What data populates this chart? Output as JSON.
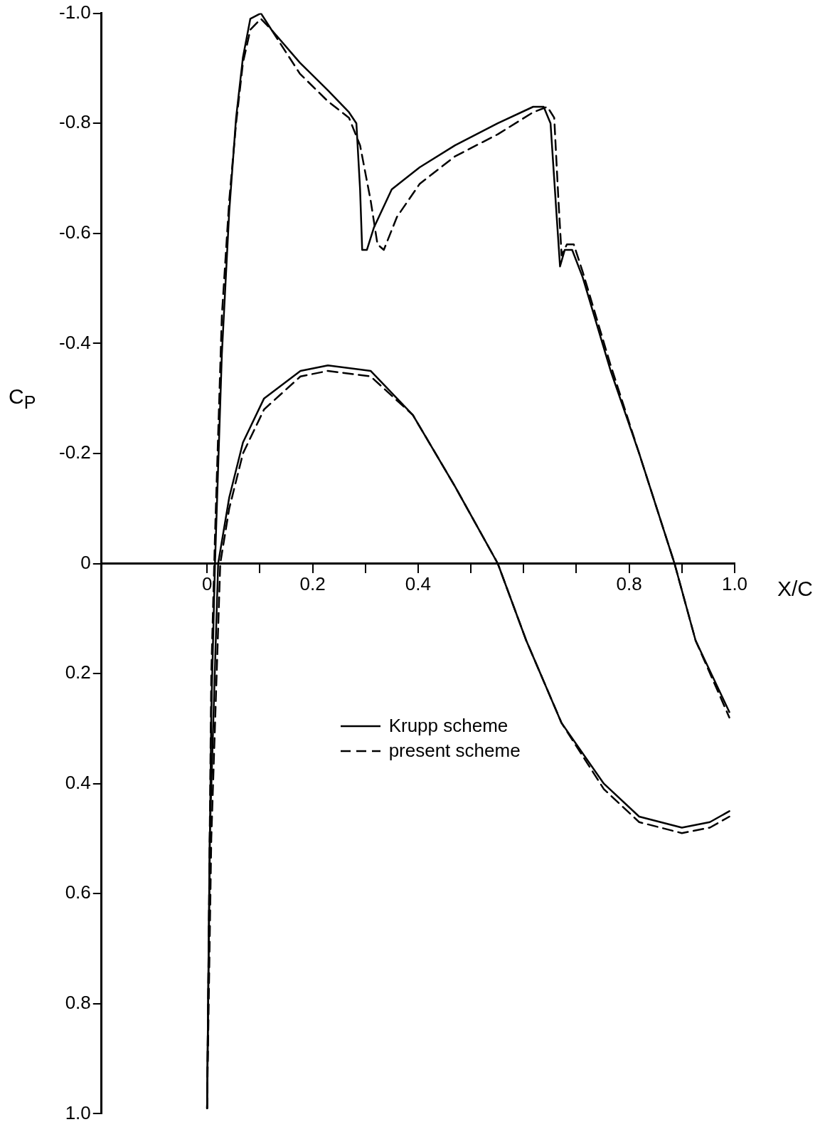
{
  "chart_data": {
    "type": "line",
    "xlabel": "X/C",
    "ylabel": "C$_{P}$",
    "xlim": [
      -0.2,
      1.0
    ],
    "xticks": [
      0,
      {
        "value": 0.1,
        "label": null
      },
      {
        "value": 0.2,
        "label": "0.2"
      },
      {
        "value": 0.3,
        "label": null
      },
      {
        "value": 0.4,
        "label": "0.4"
      },
      {
        "value": 0.5,
        "label": null
      },
      {
        "value": 0.6,
        "label": null
      },
      {
        "value": 0.7,
        "label": null
      },
      {
        "value": 0.8,
        "label": "0.8"
      },
      {
        "value": 0.9,
        "label": null
      },
      {
        "value": 1.0,
        "label": "1.0"
      }
    ],
    "ylim": [
      1.0,
      -1.0
    ],
    "yticks": [
      {
        "value": -1.0,
        "label": "-1.0"
      },
      -0.8,
      -0.6,
      -0.4,
      -0.2,
      0,
      0.2,
      0.4,
      0.6,
      0.8,
      {
        "value": 1.0,
        "label": "1.0"
      }
    ],
    "grid": false,
    "legend": "center",
    "marker": "none",
    "series": [
      {
        "name": "Krupp scheme",
        "color": "#000000",
        "line_style": "solid",
        "x": [
          0.0,
          0.008,
          0.015,
          0.028,
          0.042,
          0.055,
          0.068,
          0.082,
          0.102,
          0.122,
          0.176,
          0.229,
          0.269,
          0.283,
          0.29,
          0.294,
          0.303,
          0.316,
          0.35,
          0.403,
          0.47,
          0.551,
          0.618,
          0.638,
          0.651,
          0.662,
          0.669,
          0.678,
          0.692,
          0.712,
          0.765,
          0.819,
          0.886,
          0.926,
          0.99
        ],
        "values": [
          0.99,
          0.27,
          0.0,
          -0.38,
          -0.64,
          -0.81,
          -0.92,
          -0.99,
          -1.0,
          -0.97,
          -0.91,
          -0.86,
          -0.82,
          -0.8,
          -0.68,
          -0.57,
          -0.57,
          -0.61,
          -0.68,
          -0.72,
          -0.76,
          -0.8,
          -0.83,
          -0.83,
          -0.8,
          -0.64,
          -0.54,
          -0.57,
          -0.57,
          -0.52,
          -0.35,
          -0.2,
          0.0,
          0.14,
          0.27
        ]
      },
      {
        "color": "#000000",
        "line_style": "solid",
        "x": [
          0.0,
          0.005,
          0.021,
          0.042,
          0.068,
          0.108,
          0.177,
          0.229,
          0.31,
          0.39,
          0.47,
          0.551,
          0.605,
          0.672,
          0.752,
          0.819,
          0.9,
          0.953,
          0.99
        ],
        "values": [
          0.99,
          0.5,
          0.0,
          -0.12,
          -0.22,
          -0.3,
          -0.35,
          -0.36,
          -0.35,
          -0.27,
          -0.14,
          0.0,
          0.14,
          0.29,
          0.4,
          0.46,
          0.48,
          0.47,
          0.45
        ]
      },
      {
        "name": "present scheme",
        "color": "#000000",
        "line_style": "dashed",
        "x": [
          0.0,
          0.008,
          0.015,
          0.028,
          0.042,
          0.055,
          0.068,
          0.082,
          0.102,
          0.122,
          0.176,
          0.229,
          0.269,
          0.29,
          0.31,
          0.323,
          0.335,
          0.36,
          0.403,
          0.47,
          0.551,
          0.618,
          0.645,
          0.658,
          0.666,
          0.672,
          0.682,
          0.695,
          0.712,
          0.765,
          0.819,
          0.886,
          0.926,
          0.99
        ],
        "values": [
          0.99,
          0.2,
          -0.05,
          -0.45,
          -0.66,
          -0.8,
          -0.91,
          -0.97,
          -0.99,
          -0.97,
          -0.89,
          -0.84,
          -0.81,
          -0.76,
          -0.66,
          -0.58,
          -0.57,
          -0.63,
          -0.69,
          -0.74,
          -0.78,
          -0.82,
          -0.83,
          -0.81,
          -0.66,
          -0.56,
          -0.58,
          -0.58,
          -0.53,
          -0.36,
          -0.2,
          0.0,
          0.14,
          0.28
        ]
      },
      {
        "color": "#000000",
        "line_style": "dashed",
        "x": [
          0.0,
          0.008,
          0.025,
          0.042,
          0.068,
          0.108,
          0.177,
          0.229,
          0.31,
          0.39,
          0.47,
          0.551,
          0.605,
          0.672,
          0.752,
          0.819,
          0.9,
          0.953,
          0.99
        ],
        "values": [
          0.99,
          0.5,
          0.0,
          -0.1,
          -0.2,
          -0.28,
          -0.34,
          -0.35,
          -0.34,
          -0.27,
          -0.14,
          0.0,
          0.14,
          0.29,
          0.41,
          0.47,
          0.49,
          0.48,
          0.46
        ]
      }
    ]
  }
}
